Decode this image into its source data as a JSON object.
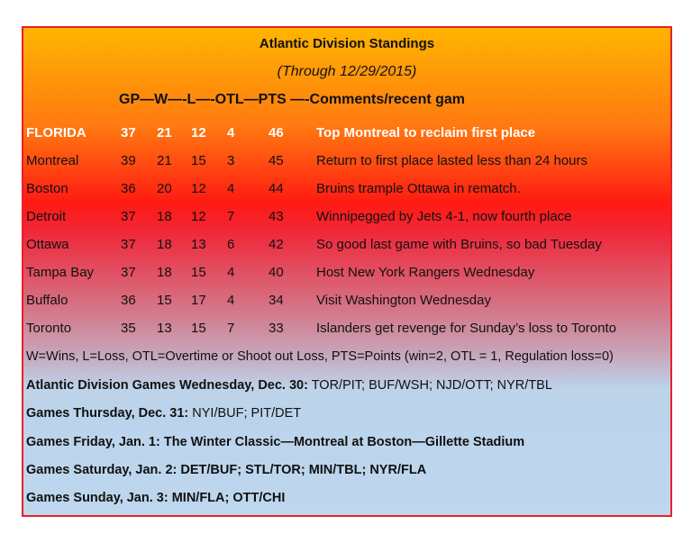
{
  "title": "Atlantic Division Standings",
  "subtitle": "(Through 12/29/2015)",
  "header": "GP—W—-L—-OTL—PTS —-Comments/recent gam",
  "rows": [
    {
      "team": "FLORIDA",
      "gp": "37",
      "w": "21",
      "l": "12",
      "otl": "4",
      "pts": "46",
      "comment": "Top Montreal to reclaim first place"
    },
    {
      "team": "Montreal",
      "gp": "39",
      "w": "21",
      "l": "15",
      "otl": "3",
      "pts": "45",
      "comment": "Return to first place lasted less than 24 hours"
    },
    {
      "team": "Boston",
      "gp": "36",
      "w": "20",
      "l": "12",
      "otl": "4",
      "pts": "44",
      "comment": "Bruins trample Ottawa in rematch."
    },
    {
      "team": "Detroit",
      "gp": "37",
      "w": "18",
      "l": "12",
      "otl": "7",
      "pts": "43",
      "comment": "Winnipegged by Jets 4-1, now fourth place"
    },
    {
      "team": "Ottawa",
      "gp": "37",
      "w": "18",
      "l": "13",
      "otl": "6",
      "pts": "42",
      "comment": "So good last game with Bruins, so bad Tuesday"
    },
    {
      "team": "Tampa Bay",
      "gp": "37",
      "w": "18",
      "l": "15",
      "otl": "4",
      "pts": "40",
      "comment": "Host New York Rangers Wednesday"
    },
    {
      "team": "Buffalo",
      "gp": "36",
      "w": "15",
      "l": "17",
      "otl": "4",
      "pts": "34",
      "comment": "Visit Washington Wednesday"
    },
    {
      "team": "Toronto",
      "gp": "35",
      "w": "13",
      "l": "15",
      "otl": "7",
      "pts": "33",
      "comment": "Islanders get revenge for Sunday’s loss to Toronto"
    }
  ],
  "legend": "W=Wins, L=Loss, OTL=Overtime or Shoot out Loss, PTS=Points (win=2, OTL = 1, Regulation loss=0)",
  "games": [
    {
      "label": "Atlantic Division Games Wednesday, Dec. 30:",
      "text": " TOR/PIT; BUF/WSH; NJD/OTT; NYR/TBL"
    },
    {
      "label": "Games Thursday, Dec. 31:",
      "text": " NYI/BUF; PIT/DET"
    },
    {
      "label": "Games Friday, Jan. 1: The Winter Classic—Montreal at Boston—Gillette Stadium",
      "text": ""
    },
    {
      "label": "Games Saturday, Jan. 2:  DET/BUF; STL/TOR; MIN/TBL; NYR/FLA",
      "text": ""
    },
    {
      "label": "Games Sunday, Jan. 3: MIN/FLA; OTT/CHI",
      "text": ""
    }
  ],
  "colors": {
    "top": "#ffb400",
    "middle": "#ff1a12",
    "bottom": "#bdd7ee",
    "border": "#e8202a",
    "leader_text": "#ffffff"
  }
}
